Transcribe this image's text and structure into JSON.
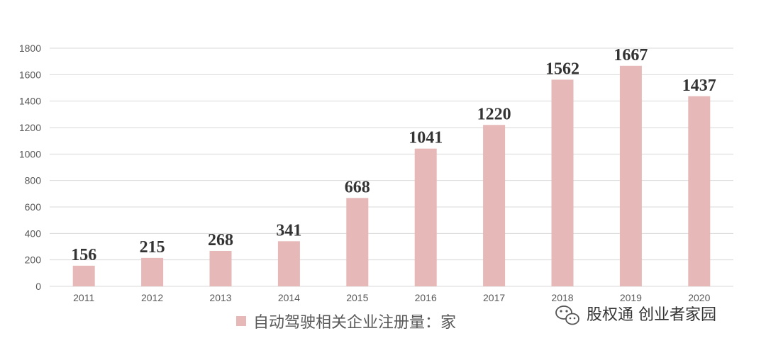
{
  "chart_data": {
    "type": "bar",
    "categories": [
      "2011",
      "2012",
      "2013",
      "2014",
      "2015",
      "2016",
      "2017",
      "2018",
      "2019",
      "2020"
    ],
    "series": [
      {
        "name": "自动驾驶相关企业注册量：家",
        "values": [
          156,
          215,
          268,
          341,
          668,
          1041,
          1220,
          1562,
          1667,
          1437
        ],
        "color": "#e6b8b7"
      }
    ],
    "ylim": [
      0,
      1800
    ],
    "yticks": [
      0,
      200,
      400,
      600,
      800,
      1000,
      1200,
      1400,
      1600,
      1800
    ],
    "grid": true,
    "legend": "bottom",
    "data_labels": true
  },
  "watermark": {
    "text": "股权通 创业者家园",
    "icon": "wechat-icon"
  },
  "colors": {
    "bar": "#e6b8b7",
    "grid": "#d9d9d9",
    "tick_text": "#595959",
    "label_text": "#333333"
  }
}
